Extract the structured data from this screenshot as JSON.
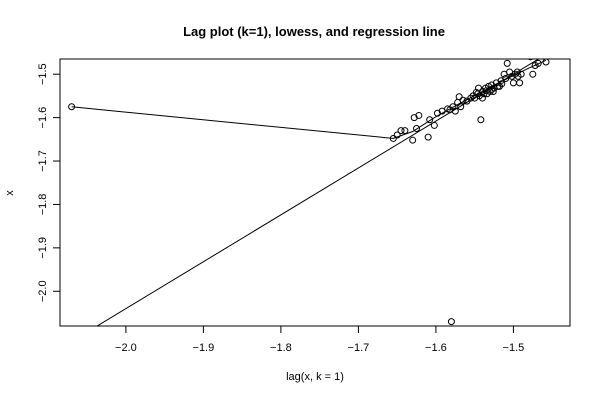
{
  "chart_data": {
    "type": "scatter",
    "title": "Lag plot (k=1), lowess, and regression line",
    "xlabel": "lag(x, k = 1)",
    "ylabel": "x",
    "xlim": [
      -2.085,
      -1.427
    ],
    "ylim": [
      -2.08,
      -1.465
    ],
    "xticks": [
      -2.0,
      -1.9,
      -1.8,
      -1.7,
      -1.6,
      -1.5
    ],
    "xtick_labels": [
      "−2.0",
      "−1.9",
      "−1.8",
      "−1.7",
      "−1.6",
      "−1.5"
    ],
    "yticks": [
      -2.0,
      -1.9,
      -1.8,
      -1.7,
      -1.6,
      -1.5
    ],
    "ytick_labels": [
      "−2.0",
      "−1.9",
      "−1.8",
      "−1.7",
      "−1.6",
      "−1.5"
    ],
    "grid": false,
    "legend": "none",
    "points": [
      [
        -2.07,
        -1.575
      ],
      [
        -1.58,
        -2.07
      ],
      [
        -1.655,
        -1.648
      ],
      [
        -1.65,
        -1.64
      ],
      [
        -1.645,
        -1.63
      ],
      [
        -1.64,
        -1.63
      ],
      [
        -1.63,
        -1.652
      ],
      [
        -1.628,
        -1.6
      ],
      [
        -1.625,
        -1.625
      ],
      [
        -1.622,
        -1.595
      ],
      [
        -1.61,
        -1.645
      ],
      [
        -1.608,
        -1.605
      ],
      [
        -1.602,
        -1.618
      ],
      [
        -1.598,
        -1.59
      ],
      [
        -1.592,
        -1.585
      ],
      [
        -1.585,
        -1.58
      ],
      [
        -1.582,
        -1.582
      ],
      [
        -1.578,
        -1.575
      ],
      [
        -1.575,
        -1.585
      ],
      [
        -1.572,
        -1.565
      ],
      [
        -1.57,
        -1.552
      ],
      [
        -1.568,
        -1.575
      ],
      [
        -1.565,
        -1.56
      ],
      [
        -1.56,
        -1.562
      ],
      [
        -1.555,
        -1.555
      ],
      [
        -1.552,
        -1.55
      ],
      [
        -1.55,
        -1.555
      ],
      [
        -1.548,
        -1.542
      ],
      [
        -1.546,
        -1.545
      ],
      [
        -1.545,
        -1.532
      ],
      [
        -1.544,
        -1.55
      ],
      [
        -1.542,
        -1.605
      ],
      [
        -1.54,
        -1.54
      ],
      [
        -1.54,
        -1.555
      ],
      [
        -1.538,
        -1.545
      ],
      [
        -1.536,
        -1.532
      ],
      [
        -1.535,
        -1.538
      ],
      [
        -1.534,
        -1.545
      ],
      [
        -1.532,
        -1.528
      ],
      [
        -1.53,
        -1.54
      ],
      [
        -1.528,
        -1.525
      ],
      [
        -1.528,
        -1.535
      ],
      [
        -1.526,
        -1.54
      ],
      [
        -1.525,
        -1.532
      ],
      [
        -1.522,
        -1.52
      ],
      [
        -1.52,
        -1.528
      ],
      [
        -1.518,
        -1.528
      ],
      [
        -1.516,
        -1.515
      ],
      [
        -1.515,
        -1.522
      ],
      [
        -1.512,
        -1.5
      ],
      [
        -1.51,
        -1.51
      ],
      [
        -1.508,
        -1.475
      ],
      [
        -1.505,
        -1.495
      ],
      [
        -1.502,
        -1.505
      ],
      [
        -1.5,
        -1.52
      ],
      [
        -1.498,
        -1.5
      ],
      [
        -1.495,
        -1.495
      ],
      [
        -1.494,
        -1.505
      ],
      [
        -1.492,
        -1.52
      ],
      [
        -1.49,
        -1.5
      ],
      [
        -1.478,
        -1.46
      ],
      [
        -1.475,
        -1.5
      ],
      [
        -1.472,
        -1.48
      ],
      [
        -1.468,
        -1.475
      ],
      [
        -1.458,
        -1.472
      ]
    ],
    "lowess": [
      [
        -2.07,
        -1.575
      ],
      [
        -1.655,
        -1.648
      ],
      [
        -1.63,
        -1.632
      ],
      [
        -1.6,
        -1.598
      ],
      [
        -1.57,
        -1.568
      ],
      [
        -1.54,
        -1.54
      ],
      [
        -1.51,
        -1.512
      ],
      [
        -1.48,
        -1.486
      ],
      [
        -1.458,
        -1.468
      ]
    ],
    "regression": {
      "intercept": 0.12,
      "slope": 1.08
    }
  }
}
